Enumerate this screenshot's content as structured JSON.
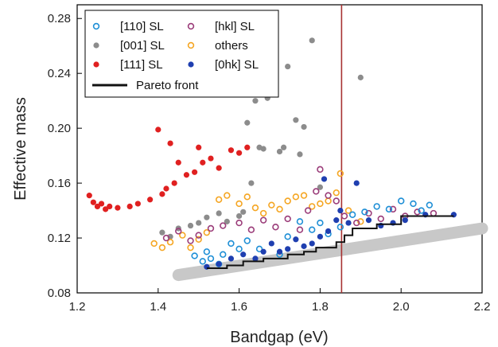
{
  "chart_data": {
    "type": "scatter",
    "xlabel": "Bandgap (eV)",
    "ylabel": "Effective mass",
    "xlim": [
      1.2,
      2.2
    ],
    "ylim": [
      0.08,
      0.29
    ],
    "x_ticks": [
      "1.2",
      "1.4",
      "1.6",
      "1.8",
      "2.0",
      "2.2"
    ],
    "x_tick_values": [
      1.2,
      1.4,
      1.6,
      1.8,
      2.0,
      2.2
    ],
    "y_ticks": [
      "0.08",
      "0.12",
      "0.16",
      "0.20",
      "0.24",
      "0.28"
    ],
    "y_tick_values": [
      0.08,
      0.12,
      0.16,
      0.2,
      0.24,
      0.28
    ],
    "grid": false,
    "legend_position": "top-left",
    "vertical_line": {
      "x": 1.853,
      "color": "#a83232"
    },
    "trend_band": {
      "color": "#c8c8c8",
      "x": [
        1.45,
        2.2
      ],
      "y": [
        0.093,
        0.127
      ]
    },
    "series": [
      {
        "name": "[110] SL",
        "marker": "open",
        "color": "#1f8fd6",
        "points": [
          [
            1.49,
            0.107
          ],
          [
            1.51,
            0.103
          ],
          [
            1.52,
            0.11
          ],
          [
            1.53,
            0.105
          ],
          [
            1.55,
            0.101
          ],
          [
            1.56,
            0.108
          ],
          [
            1.58,
            0.116
          ],
          [
            1.6,
            0.112
          ],
          [
            1.62,
            0.118
          ],
          [
            1.65,
            0.112
          ],
          [
            1.7,
            0.108
          ],
          [
            1.72,
            0.121
          ],
          [
            1.75,
            0.132
          ],
          [
            1.78,
            0.126
          ],
          [
            1.8,
            0.131
          ],
          [
            1.82,
            0.123
          ],
          [
            1.85,
            0.128
          ],
          [
            1.88,
            0.137
          ],
          [
            1.91,
            0.139
          ],
          [
            1.94,
            0.143
          ],
          [
            1.97,
            0.141
          ],
          [
            2.0,
            0.147
          ],
          [
            2.03,
            0.145
          ],
          [
            2.05,
            0.14
          ],
          [
            2.07,
            0.144
          ]
        ]
      },
      {
        "name": "[001] SL",
        "marker": "filled",
        "color": "#8c8c8c",
        "points": [
          [
            1.41,
            0.124
          ],
          [
            1.43,
            0.121
          ],
          [
            1.45,
            0.127
          ],
          [
            1.48,
            0.129
          ],
          [
            1.5,
            0.131
          ],
          [
            1.52,
            0.135
          ],
          [
            1.55,
            0.138
          ],
          [
            1.57,
            0.132
          ],
          [
            1.6,
            0.136
          ],
          [
            1.61,
            0.139
          ],
          [
            1.62,
            0.204
          ],
          [
            1.63,
            0.16
          ],
          [
            1.64,
            0.22
          ],
          [
            1.65,
            0.186
          ],
          [
            1.66,
            0.185
          ],
          [
            1.67,
            0.222
          ],
          [
            1.7,
            0.183
          ],
          [
            1.71,
            0.186
          ],
          [
            1.72,
            0.245
          ],
          [
            1.74,
            0.206
          ],
          [
            1.75,
            0.181
          ],
          [
            1.76,
            0.201
          ],
          [
            1.78,
            0.264
          ],
          [
            1.8,
            0.157
          ],
          [
            1.9,
            0.237
          ]
        ]
      },
      {
        "name": "[111] SL",
        "marker": "filled",
        "color": "#e02020",
        "points": [
          [
            1.23,
            0.151
          ],
          [
            1.24,
            0.146
          ],
          [
            1.25,
            0.143
          ],
          [
            1.26,
            0.145
          ],
          [
            1.27,
            0.141
          ],
          [
            1.28,
            0.143
          ],
          [
            1.3,
            0.142
          ],
          [
            1.33,
            0.143
          ],
          [
            1.35,
            0.145
          ],
          [
            1.38,
            0.148
          ],
          [
            1.4,
            0.199
          ],
          [
            1.41,
            0.152
          ],
          [
            1.42,
            0.156
          ],
          [
            1.43,
            0.189
          ],
          [
            1.44,
            0.16
          ],
          [
            1.45,
            0.175
          ],
          [
            1.47,
            0.166
          ],
          [
            1.49,
            0.168
          ],
          [
            1.5,
            0.186
          ],
          [
            1.51,
            0.175
          ],
          [
            1.53,
            0.178
          ],
          [
            1.55,
            0.171
          ],
          [
            1.58,
            0.184
          ],
          [
            1.6,
            0.182
          ],
          [
            1.62,
            0.186
          ]
        ]
      },
      {
        "name": "[hkl] SL",
        "marker": "open",
        "color": "#9b3d7a",
        "points": [
          [
            1.42,
            0.12
          ],
          [
            1.45,
            0.125
          ],
          [
            1.48,
            0.118
          ],
          [
            1.5,
            0.122
          ],
          [
            1.53,
            0.127
          ],
          [
            1.56,
            0.129
          ],
          [
            1.6,
            0.131
          ],
          [
            1.63,
            0.126
          ],
          [
            1.66,
            0.133
          ],
          [
            1.69,
            0.128
          ],
          [
            1.72,
            0.134
          ],
          [
            1.75,
            0.126
          ],
          [
            1.77,
            0.14
          ],
          [
            1.79,
            0.154
          ],
          [
            1.8,
            0.17
          ],
          [
            1.82,
            0.151
          ],
          [
            1.84,
            0.147
          ],
          [
            1.86,
            0.136
          ],
          [
            1.89,
            0.131
          ],
          [
            1.92,
            0.138
          ],
          [
            1.95,
            0.134
          ],
          [
            1.98,
            0.141
          ],
          [
            2.01,
            0.136
          ],
          [
            2.04,
            0.139
          ],
          [
            2.08,
            0.138
          ]
        ]
      },
      {
        "name": "others",
        "marker": "open",
        "color": "#f5a623",
        "points": [
          [
            1.39,
            0.116
          ],
          [
            1.41,
            0.113
          ],
          [
            1.43,
            0.117
          ],
          [
            1.46,
            0.122
          ],
          [
            1.48,
            0.113
          ],
          [
            1.5,
            0.119
          ],
          [
            1.52,
            0.124
          ],
          [
            1.55,
            0.148
          ],
          [
            1.57,
            0.151
          ],
          [
            1.6,
            0.145
          ],
          [
            1.62,
            0.15
          ],
          [
            1.64,
            0.142
          ],
          [
            1.66,
            0.138
          ],
          [
            1.68,
            0.144
          ],
          [
            1.7,
            0.141
          ],
          [
            1.72,
            0.147
          ],
          [
            1.74,
            0.15
          ],
          [
            1.76,
            0.151
          ],
          [
            1.78,
            0.143
          ],
          [
            1.8,
            0.145
          ],
          [
            1.82,
            0.147
          ],
          [
            1.84,
            0.153
          ],
          [
            1.85,
            0.167
          ],
          [
            1.87,
            0.14
          ],
          [
            1.9,
            0.132
          ]
        ]
      },
      {
        "name": "[0hk] SL",
        "marker": "filled",
        "color": "#1f3fb0",
        "points": [
          [
            1.52,
            0.099
          ],
          [
            1.55,
            0.101
          ],
          [
            1.58,
            0.105
          ],
          [
            1.61,
            0.108
          ],
          [
            1.64,
            0.105
          ],
          [
            1.66,
            0.11
          ],
          [
            1.68,
            0.116
          ],
          [
            1.7,
            0.11
          ],
          [
            1.72,
            0.112
          ],
          [
            1.74,
            0.119
          ],
          [
            1.76,
            0.114
          ],
          [
            1.78,
            0.116
          ],
          [
            1.8,
            0.121
          ],
          [
            1.81,
            0.163
          ],
          [
            1.82,
            0.125
          ],
          [
            1.84,
            0.133
          ],
          [
            1.85,
            0.14
          ],
          [
            1.87,
            0.131
          ],
          [
            1.89,
            0.16
          ],
          [
            1.92,
            0.133
          ],
          [
            1.95,
            0.129
          ],
          [
            1.98,
            0.131
          ],
          [
            2.01,
            0.133
          ],
          [
            2.06,
            0.137
          ],
          [
            2.13,
            0.137
          ]
        ]
      }
    ],
    "pareto_front": {
      "name": "Pareto front",
      "color": "#111111",
      "points": [
        [
          1.52,
          0.098
        ],
        [
          1.57,
          0.098
        ],
        [
          1.57,
          0.1
        ],
        [
          1.61,
          0.1
        ],
        [
          1.61,
          0.103
        ],
        [
          1.66,
          0.103
        ],
        [
          1.66,
          0.105
        ],
        [
          1.72,
          0.105
        ],
        [
          1.72,
          0.108
        ],
        [
          1.76,
          0.108
        ],
        [
          1.76,
          0.11
        ],
        [
          1.79,
          0.11
        ],
        [
          1.79,
          0.113
        ],
        [
          1.84,
          0.113
        ],
        [
          1.84,
          0.117
        ],
        [
          1.86,
          0.117
        ],
        [
          1.86,
          0.122
        ],
        [
          1.88,
          0.122
        ],
        [
          1.88,
          0.127
        ],
        [
          1.94,
          0.127
        ],
        [
          1.94,
          0.13
        ],
        [
          2.0,
          0.13
        ],
        [
          2.0,
          0.136
        ],
        [
          2.13,
          0.136
        ]
      ]
    }
  }
}
